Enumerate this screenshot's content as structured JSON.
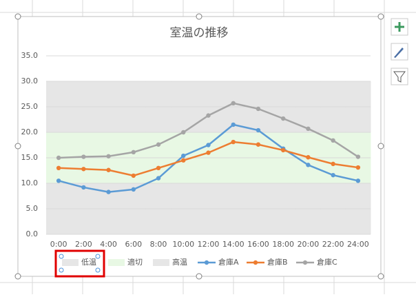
{
  "chart_data": {
    "type": "line",
    "title": "室温の推移",
    "categories": [
      "0:00",
      "2:00",
      "4:00",
      "6:00",
      "8:00",
      "10:00",
      "12:00",
      "14:00",
      "16:00",
      "18:00",
      "20:00",
      "22:00",
      "24:00"
    ],
    "series": [
      {
        "name": "低温",
        "type": "area",
        "color": "#e6e6e6",
        "values": [
          10,
          10,
          10,
          10,
          10,
          10,
          10,
          10,
          10,
          10,
          10,
          10,
          10
        ]
      },
      {
        "name": "適切",
        "type": "area",
        "color": "#e8f8e4",
        "values": [
          10,
          10,
          10,
          10,
          10,
          10,
          10,
          10,
          10,
          10,
          10,
          10,
          10
        ]
      },
      {
        "name": "高温",
        "type": "area",
        "color": "#e6e6e6",
        "values": [
          10,
          10,
          10,
          10,
          10,
          10,
          10,
          10,
          10,
          10,
          10,
          10,
          10
        ]
      },
      {
        "name": "倉庫A",
        "type": "line",
        "color": "#5b9bd5",
        "values": [
          10.5,
          9.2,
          8.3,
          8.8,
          11.0,
          15.4,
          17.5,
          21.5,
          20.4,
          16.8,
          13.6,
          11.6,
          10.5
        ]
      },
      {
        "name": "倉庫B",
        "type": "line",
        "color": "#ed7d31",
        "values": [
          13.0,
          12.8,
          12.6,
          11.5,
          13.0,
          14.5,
          16.0,
          18.1,
          17.6,
          16.5,
          15.1,
          13.8,
          13.1
        ]
      },
      {
        "name": "倉庫C",
        "type": "line",
        "color": "#a5a5a5",
        "values": [
          15.0,
          15.2,
          15.3,
          16.1,
          17.6,
          20.0,
          23.3,
          25.7,
          24.6,
          22.7,
          20.7,
          18.4,
          15.2
        ]
      }
    ],
    "ylim": [
      0,
      35
    ],
    "yticks": [
      {
        "value": 0,
        "label": "0.0"
      },
      {
        "value": 5,
        "label": "5.0"
      },
      {
        "value": 10,
        "label": "10.0"
      },
      {
        "value": 15,
        "label": "15.0"
      },
      {
        "value": 20,
        "label": "20.0"
      },
      {
        "value": 25,
        "label": "25.0"
      },
      {
        "value": 30,
        "label": "30.0"
      },
      {
        "value": 35,
        "label": "35.0"
      }
    ],
    "grid": true,
    "legend": "bottom"
  }
}
